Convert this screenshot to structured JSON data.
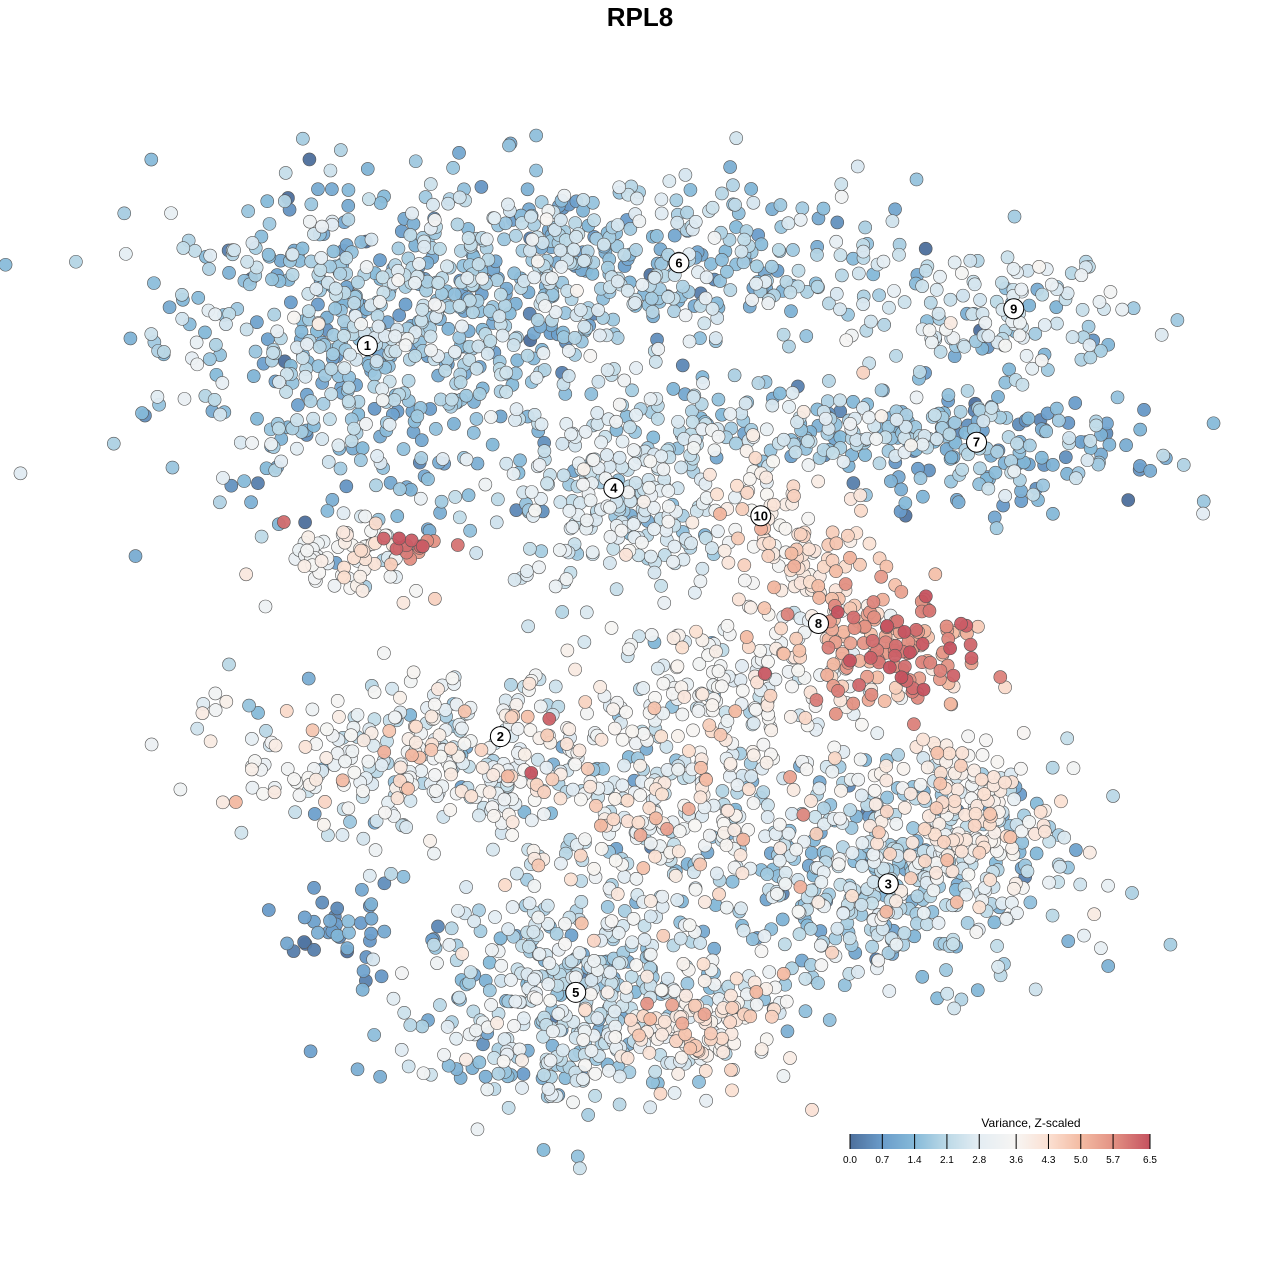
{
  "chart_data": {
    "type": "scatter",
    "title": "RPL8",
    "xlabel": "",
    "ylabel": "",
    "xlim": [
      -50,
      50
    ],
    "ylim": [
      -50,
      50
    ],
    "grid": false,
    "legend": {
      "title": "Variance, Z-scaled",
      "placement": "bottom-right",
      "ticks": [
        "0.0",
        "0.7",
        "1.4",
        "2.1",
        "2.8",
        "3.6",
        "4.3",
        "5.0",
        "5.7",
        "6.5"
      ],
      "range": [
        0,
        6.5
      ],
      "colors": [
        [
          0,
          "#4d6f9c"
        ],
        [
          0.7,
          "#6a9cca"
        ],
        [
          1.4,
          "#86bad9"
        ],
        [
          2.1,
          "#bcd9e7"
        ],
        [
          2.8,
          "#e4edf3"
        ],
        [
          3.6,
          "#f7f5f3"
        ],
        [
          4.3,
          "#fbe0d2"
        ],
        [
          5.0,
          "#f3bba3"
        ],
        [
          5.7,
          "#e39284"
        ],
        [
          6.5,
          "#c5525f"
        ]
      ]
    },
    "clusters": [
      {
        "label": "1",
        "x": -32,
        "y": 32,
        "n": 520,
        "sx": 11,
        "sy": 9,
        "mean": 1.7,
        "sd": 0.7
      },
      {
        "label": "6",
        "x": -7,
        "y": 40,
        "n": 520,
        "sx": 17,
        "sy": 5,
        "mean": 1.8,
        "sd": 0.7
      },
      {
        "label": "4",
        "x": -5,
        "y": 16,
        "n": 260,
        "sx": 6,
        "sy": 6,
        "mean": 2.5,
        "sd": 0.6
      },
      {
        "label": "9",
        "x": 36,
        "y": 35,
        "n": 110,
        "sx": 7,
        "sy": 3,
        "mean": 2.4,
        "sd": 0.6
      },
      {
        "label": "7",
        "x": 34,
        "y": 21,
        "n": 200,
        "sx": 10,
        "sy": 3.5,
        "mean": 1.3,
        "sd": 0.7
      },
      {
        "label": "",
        "x": 14,
        "y": 23,
        "n": 120,
        "sx": 9,
        "sy": 2,
        "mean": 2.2,
        "sd": 0.7
      },
      {
        "label": "10",
        "x": 10,
        "y": 14,
        "n": 50,
        "sx": 2.5,
        "sy": 4,
        "mean": 3.9,
        "sd": 0.5
      },
      {
        "label": "8",
        "x": 25,
        "y": -1,
        "n": 140,
        "sx": 5,
        "sy": 3,
        "mean": 5.6,
        "sd": 0.6
      },
      {
        "label": "",
        "x": 17,
        "y": 6,
        "n": 80,
        "sx": 3,
        "sy": 5,
        "mean": 4.3,
        "sd": 0.6
      },
      {
        "label": "",
        "x": 9,
        "y": -4,
        "n": 140,
        "sx": 8,
        "sy": 4,
        "mean": 3.3,
        "sd": 0.5
      },
      {
        "label": "2",
        "x": -28,
        "y": -13,
        "n": 280,
        "sx": 9,
        "sy": 4.5,
        "mean": 3.0,
        "sd": 0.8
      },
      {
        "label": "3",
        "x": 24,
        "y": -25,
        "n": 420,
        "sx": 10,
        "sy": 6,
        "mean": 2.0,
        "sd": 0.7
      },
      {
        "label": "",
        "x": 32,
        "y": -19,
        "n": 150,
        "sx": 5,
        "sy": 5,
        "mean": 4.0,
        "sd": 0.5
      },
      {
        "label": "",
        "x": -2,
        "y": -17,
        "n": 380,
        "sx": 11,
        "sy": 7,
        "mean": 3.0,
        "sd": 1.0
      },
      {
        "label": "5",
        "x": -10,
        "y": -39,
        "n": 420,
        "sx": 9,
        "sy": 6,
        "mean": 2.2,
        "sd": 0.7
      },
      {
        "label": "",
        "x": 3,
        "y": -42,
        "n": 120,
        "sx": 5,
        "sy": 3,
        "mean": 4.0,
        "sd": 0.6
      },
      {
        "label": "",
        "x": -27,
        "y": 10,
        "n": 14,
        "sx": 2,
        "sy": 0.7,
        "mean": 6.0,
        "sd": 0.3
      },
      {
        "label": "",
        "x": -34,
        "y": 9,
        "n": 70,
        "sx": 4,
        "sy": 2,
        "mean": 3.6,
        "sd": 0.6
      },
      {
        "label": "",
        "x": -34,
        "y": -32,
        "n": 40,
        "sx": 3.5,
        "sy": 2.5,
        "mean": 0.7,
        "sd": 0.4
      }
    ],
    "label_positions": [
      {
        "label": "1",
        "x": -32,
        "y": 32
      },
      {
        "label": "6",
        "x": 1.5,
        "y": 41
      },
      {
        "label": "4",
        "x": -5.5,
        "y": 16.5
      },
      {
        "label": "9",
        "x": 37.5,
        "y": 36
      },
      {
        "label": "7",
        "x": 33.5,
        "y": 21.5
      },
      {
        "label": "10",
        "x": 10.3,
        "y": 13.5
      },
      {
        "label": "8",
        "x": 16.5,
        "y": 1.8
      },
      {
        "label": "2",
        "x": -17.7,
        "y": -10.5
      },
      {
        "label": "3",
        "x": 24,
        "y": -26.5
      },
      {
        "label": "5",
        "x": -9.6,
        "y": -38.3
      }
    ]
  }
}
